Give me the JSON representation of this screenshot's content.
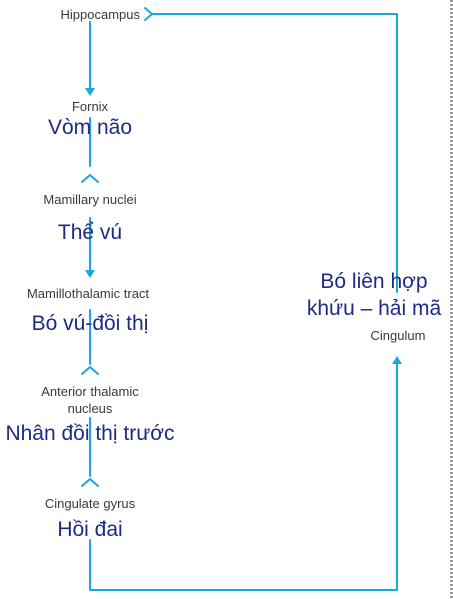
{
  "nodes": {
    "hippocampus": {
      "en": "Hippocampus"
    },
    "fornix": {
      "en": "Fornix",
      "vi": "Vòm não"
    },
    "mamillary": {
      "en": "Mamillary nuclei",
      "vi": "Thể vú"
    },
    "mamillothalamic": {
      "en": "Mamillothalamic tract",
      "vi": "Bó vú-đồi thị"
    },
    "anterior_thalamic": {
      "en_line1": "Anterior thalamic",
      "en_line2": "nucleus",
      "vi": "Nhân đồi thị trước"
    },
    "cingulate_gyrus": {
      "en": "Cingulate gyrus",
      "vi": "Hồi đai"
    },
    "cingulum": {
      "en": "Cingulum",
      "vi_line1": "Bó liên hợp",
      "vi_line2": "khứu – hải mã"
    }
  },
  "colors": {
    "connector": "#1aa6e0",
    "vietnamese_text": "#1f2a86",
    "english_text": "#3a3a3a"
  }
}
